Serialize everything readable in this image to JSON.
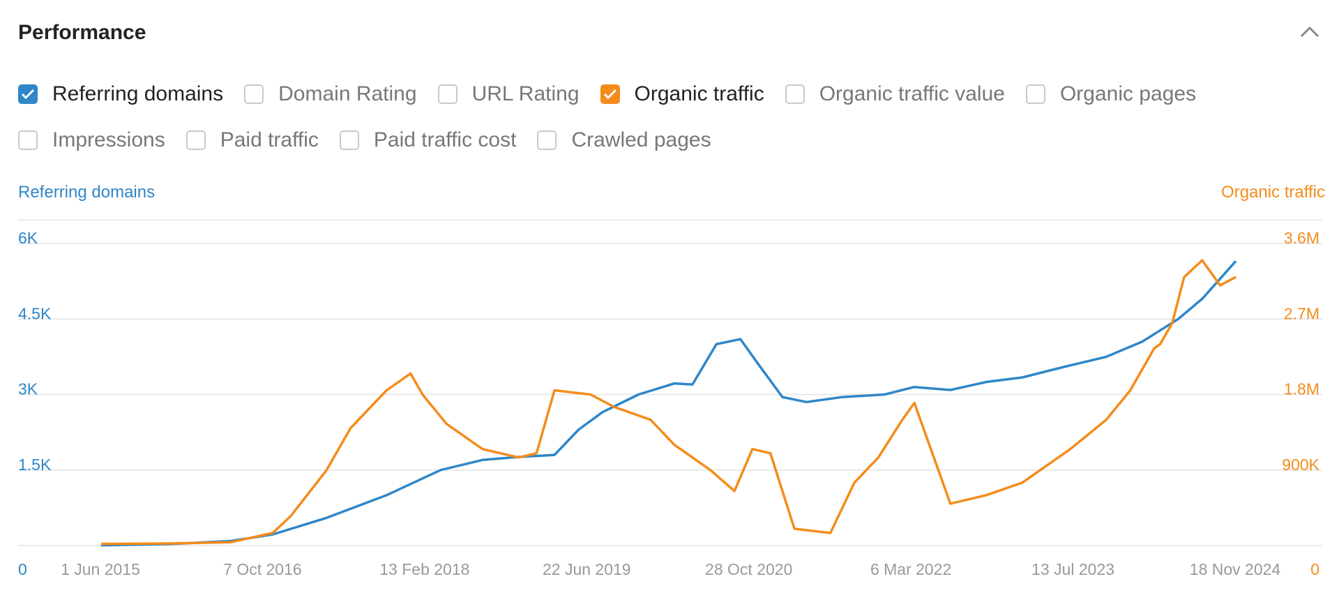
{
  "header": {
    "title": "Performance",
    "collapse_icon": "chevron-up-icon"
  },
  "checkboxes": [
    {
      "label": "Referring domains",
      "checked": true,
      "color": "#2f86c8"
    },
    {
      "label": "Domain Rating",
      "checked": false
    },
    {
      "label": "URL Rating",
      "checked": false
    },
    {
      "label": "Organic traffic",
      "checked": true,
      "color": "#f48c1b"
    },
    {
      "label": "Organic traffic value",
      "checked": false
    },
    {
      "label": "Organic pages",
      "checked": false
    },
    {
      "label": "Impressions",
      "checked": false
    },
    {
      "label": "Paid traffic",
      "checked": false
    },
    {
      "label": "Paid traffic cost",
      "checked": false
    },
    {
      "label": "Crawled pages",
      "checked": false
    }
  ],
  "chart_data": {
    "type": "line",
    "title": "",
    "y_left_label": "Referring domains",
    "y_right_label": "Organic traffic",
    "y_left_ticks": [
      "0",
      "1.5K",
      "3K",
      "4.5K",
      "6K"
    ],
    "y_right_ticks": [
      "0",
      "900K",
      "1.8M",
      "2.7M",
      "3.6M"
    ],
    "y_left_range": [
      0,
      6000
    ],
    "y_right_range": [
      0,
      3600000
    ],
    "x_ticks": [
      "1 Jun 2015",
      "7 Oct 2016",
      "13 Feb 2018",
      "22 Jun 2019",
      "28 Oct 2020",
      "6 Mar 2022",
      "13 Jul 2023",
      "18 Nov 2024"
    ],
    "grid": true,
    "colors": {
      "left": "#2f86c8",
      "right": "#f48c1b"
    },
    "series": [
      {
        "name": "Referring domains",
        "axis": "left",
        "color": "#2f86c8",
        "x": [
          2015.42,
          2016.0,
          2016.5,
          2016.85,
          2017.3,
          2017.8,
          2018.25,
          2018.6,
          2018.9,
          2019.2,
          2019.4,
          2019.6,
          2019.9,
          2020.2,
          2020.35,
          2020.55,
          2020.75,
          2020.9,
          2021.1,
          2021.3,
          2021.6,
          2021.95,
          2022.2,
          2022.5,
          2022.8,
          2023.1,
          2023.45,
          2023.8,
          2024.1,
          2024.4,
          2024.6,
          2024.88
        ],
        "y": [
          5,
          30,
          90,
          220,
          550,
          1000,
          1500,
          1700,
          1760,
          1800,
          2300,
          2650,
          3000,
          3220,
          3200,
          4000,
          4100,
          3600,
          2950,
          2850,
          2950,
          3000,
          3150,
          3090,
          3250,
          3340,
          3550,
          3750,
          4050,
          4500,
          4900,
          5650
        ]
      },
      {
        "name": "Organic traffic",
        "axis": "right",
        "color": "#f48c1b",
        "x": [
          2015.42,
          2016.0,
          2016.5,
          2016.85,
          2017.0,
          2017.3,
          2017.5,
          2017.8,
          2018.0,
          2018.1,
          2018.3,
          2018.6,
          2018.9,
          2019.05,
          2019.2,
          2019.5,
          2019.7,
          2020.0,
          2020.2,
          2020.5,
          2020.7,
          2020.85,
          2021.0,
          2021.2,
          2021.5,
          2021.7,
          2021.9,
          2022.1,
          2022.2,
          2022.5,
          2022.8,
          2023.1,
          2023.5,
          2023.8,
          2024.0,
          2024.2,
          2024.25,
          2024.35,
          2024.45,
          2024.6,
          2024.75,
          2024.88
        ],
        "y": [
          20000,
          25000,
          40000,
          150000,
          350000,
          900000,
          1400000,
          1850000,
          2050000,
          1800000,
          1450000,
          1150000,
          1050000,
          1100000,
          1850000,
          1800000,
          1650000,
          1500000,
          1200000,
          900000,
          650000,
          1150000,
          1100000,
          200000,
          150000,
          750000,
          1050000,
          1500000,
          1700000,
          500000,
          600000,
          750000,
          1150000,
          1500000,
          1850000,
          2350000,
          2400000,
          2650000,
          3200000,
          3400000,
          3100000,
          3200000
        ]
      }
    ]
  }
}
